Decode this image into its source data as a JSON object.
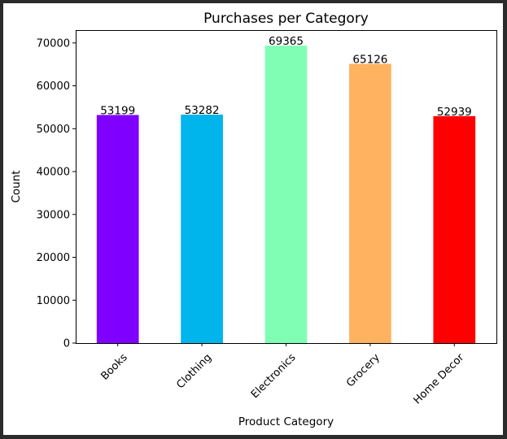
{
  "chart_data": {
    "type": "bar",
    "title": "Purchases per Category",
    "xlabel": "Product Category",
    "ylabel": "Count",
    "categories": [
      "Books",
      "Clothing",
      "Electronics",
      "Grocery",
      "Home Decor"
    ],
    "values": [
      53199,
      53282,
      69365,
      65126,
      52939
    ],
    "data_labels": [
      "53199",
      "53282",
      "69365",
      "65126",
      "52939"
    ],
    "colors": [
      "#8000ff",
      "#00b5eb",
      "#80ffb4",
      "#ffb360",
      "#ff0000"
    ],
    "ylim": [
      0,
      73000
    ],
    "yticks": [
      0,
      10000,
      20000,
      30000,
      40000,
      50000,
      60000,
      70000
    ],
    "ytick_labels": [
      "0",
      "10000",
      "20000",
      "30000",
      "40000",
      "50000",
      "60000",
      "70000"
    ],
    "xtick_rotation": 45,
    "grid": false,
    "legend": "none"
  }
}
